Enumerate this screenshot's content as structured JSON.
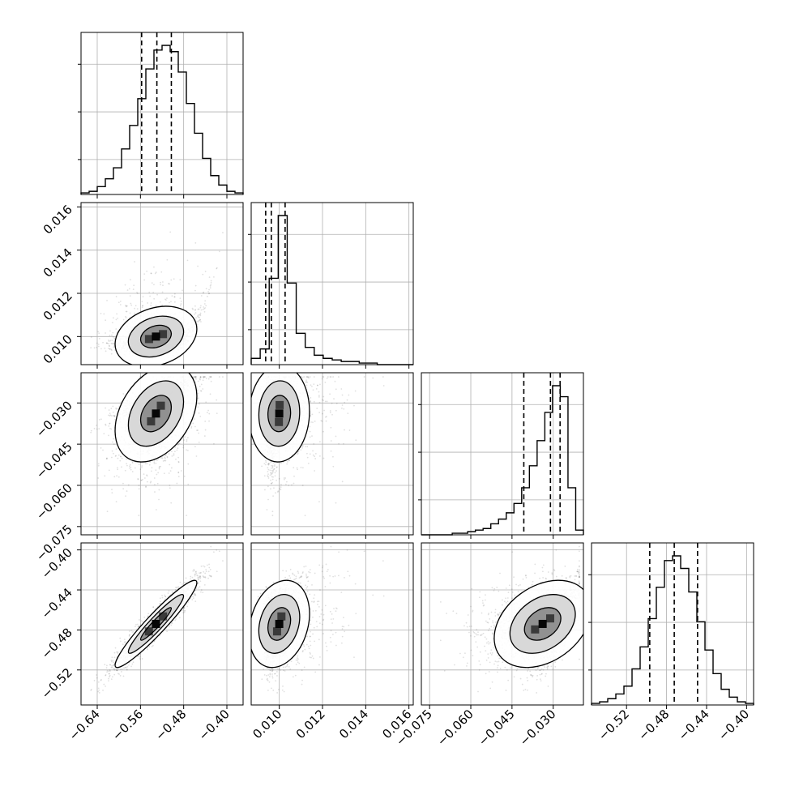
{
  "chart_data": {
    "type": "corner",
    "colors": {
      "line": "#000000",
      "grid": "#b0b0b0",
      "frame": "#000000",
      "points": "#000000"
    },
    "grid": true,
    "quantile_lines": "dashed",
    "parameters": [
      {
        "range": [
          -0.67,
          -0.37
        ],
        "ticks": [
          -0.64,
          -0.56,
          -0.48,
          -0.4
        ],
        "tick_labels": [
          "−0.64",
          "−0.56",
          "−0.48",
          "−0.40"
        ],
        "quantiles": [
          -0.5578,
          -0.5296,
          -0.5028
        ],
        "histogram": [
          1,
          2,
          5,
          10,
          17,
          29,
          44,
          61,
          80,
          92,
          95,
          91,
          78,
          58,
          39,
          23,
          12,
          6,
          2,
          1
        ],
        "center": -0.53,
        "spread": 0.04
      },
      {
        "range": [
          0.0087,
          0.0162
        ],
        "ticks": [
          0.01,
          0.012,
          0.014,
          0.016
        ],
        "tick_labels": [
          "0.010",
          "0.012",
          "0.014",
          "0.016"
        ],
        "quantiles": [
          0.00937,
          0.00963,
          0.01027
        ],
        "histogram": [
          4,
          10,
          55,
          95,
          52,
          20,
          11,
          6,
          4,
          3,
          2,
          2,
          1,
          1,
          0,
          0,
          0,
          0
        ],
        "center": 0.0097,
        "spread": 0.0006
      },
      {
        "range": [
          -0.078,
          -0.019
        ],
        "ticks": [
          -0.075,
          -0.06,
          -0.045,
          -0.03
        ],
        "tick_labels": [
          "−0.075",
          "−0.060",
          "−0.045",
          "−0.030"
        ],
        "quantiles": [
          -0.0407,
          -0.031,
          -0.0275
        ],
        "histogram": [
          0,
          0,
          0,
          0,
          1,
          1,
          2,
          3,
          4,
          7,
          10,
          14,
          20,
          30,
          44,
          60,
          78,
          95,
          88,
          30,
          3
        ],
        "center": -0.032,
        "spread": 0.008
      },
      {
        "range": [
          -0.555,
          -0.393
        ],
        "ticks": [
          -0.52,
          -0.48,
          -0.44,
          -0.4
        ],
        "tick_labels": [
          "−0.52",
          "−0.48",
          "−0.44",
          "−0.40"
        ],
        "quantiles": [
          -0.4968,
          -0.4723,
          -0.449
        ],
        "histogram": [
          1,
          2,
          4,
          7,
          12,
          23,
          37,
          55,
          75,
          92,
          95,
          87,
          72,
          53,
          35,
          20,
          10,
          5,
          2,
          1
        ],
        "center": -0.473,
        "spread": 0.022
      }
    ]
  }
}
